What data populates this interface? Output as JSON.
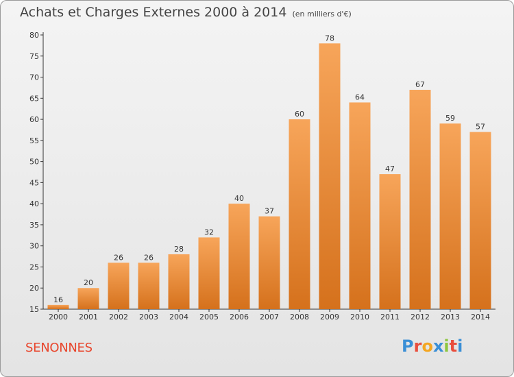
{
  "header": {
    "title": "Achats et Charges Externes 2000 à 2014",
    "unit": "(en milliers d'€)"
  },
  "commune": "SENONNES",
  "logo": {
    "text": "Proxiti",
    "letters": [
      "P",
      "r",
      "o",
      "x",
      "i",
      "t",
      "i"
    ],
    "colors": [
      "#3a8fd6",
      "#e94e3d",
      "#f4a621",
      "#3a8fd6",
      "#8dc63f",
      "#e94e3d",
      "#3a8fd6"
    ]
  },
  "colors": {
    "bar_light": "#f7a55a",
    "bar_dark": "#d5711c",
    "commune": "#e8452c"
  },
  "chart_data": {
    "type": "bar",
    "categories": [
      "2000",
      "2001",
      "2002",
      "2003",
      "2004",
      "2005",
      "2006",
      "2007",
      "2008",
      "2009",
      "2010",
      "2011",
      "2012",
      "2013",
      "2014"
    ],
    "values": [
      16,
      20,
      26,
      26,
      28,
      32,
      40,
      37,
      60,
      78,
      64,
      47,
      67,
      59,
      57
    ],
    "ylim": [
      15,
      80
    ],
    "yticks": [
      15,
      20,
      25,
      30,
      35,
      40,
      45,
      50,
      55,
      60,
      65,
      70,
      75,
      80
    ],
    "grid": false,
    "data_labels": true
  }
}
